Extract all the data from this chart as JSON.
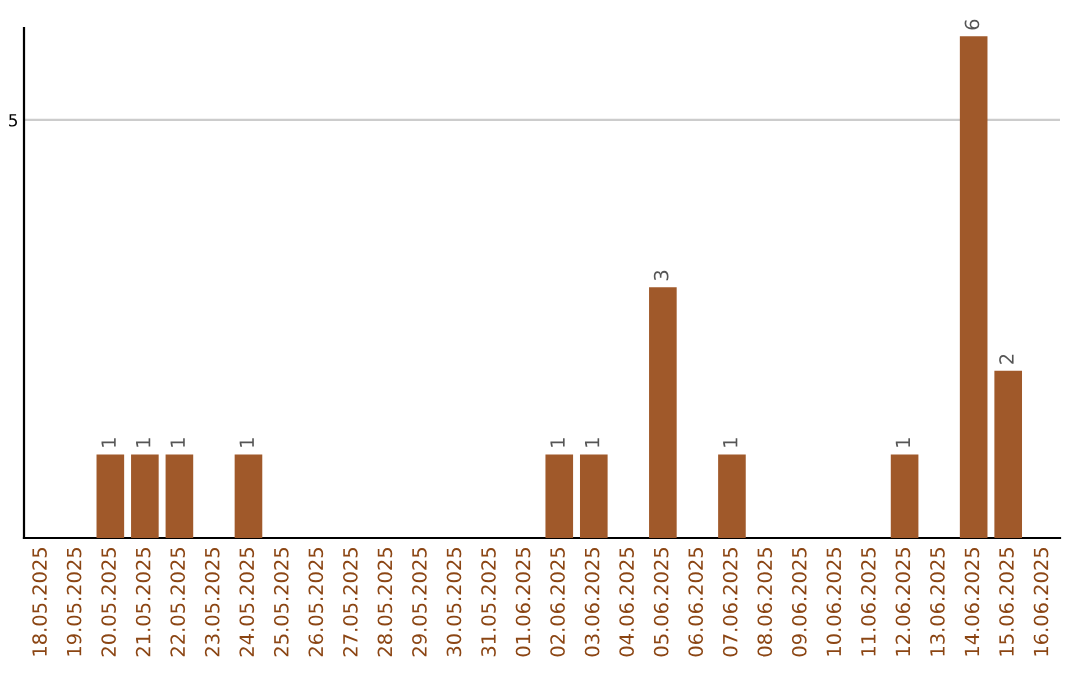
{
  "chart_data": {
    "type": "bar",
    "categories": [
      "18.05.2025",
      "19.05.2025",
      "20.05.2025",
      "21.05.2025",
      "22.05.2025",
      "23.05.2025",
      "24.05.2025",
      "25.05.2025",
      "26.05.2025",
      "27.05.2025",
      "28.05.2025",
      "29.05.2025",
      "30.05.2025",
      "31.05.2025",
      "01.06.2025",
      "02.06.2025",
      "03.06.2025",
      "04.06.2025",
      "05.06.2025",
      "06.06.2025",
      "07.06.2025",
      "08.06.2025",
      "09.06.2025",
      "10.06.2025",
      "11.06.2025",
      "12.06.2025",
      "13.06.2025",
      "14.06.2025",
      "15.06.2025",
      "16.06.2025"
    ],
    "values": [
      0,
      0,
      1,
      1,
      1,
      0,
      1,
      0,
      0,
      0,
      0,
      0,
      0,
      0,
      0,
      1,
      1,
      0,
      3,
      0,
      1,
      0,
      0,
      0,
      0,
      1,
      0,
      6,
      2,
      0
    ],
    "color": "#a0592a",
    "value_labels": [
      null,
      null,
      "1",
      "1",
      "1",
      null,
      "1",
      null,
      null,
      null,
      null,
      null,
      null,
      null,
      null,
      "1",
      "1",
      null,
      "3",
      null,
      "1",
      null,
      null,
      null,
      null,
      "1",
      null,
      "6",
      "2",
      null
    ],
    "ylim": [
      0,
      6.1
    ],
    "yticks": [
      5
    ],
    "grid": "y"
  }
}
